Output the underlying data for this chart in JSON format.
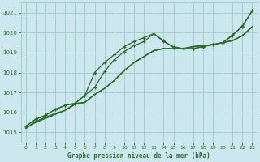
{
  "title": "Graphe pression niveau de la mer (hPa)",
  "xlabel_ticks": [
    0,
    1,
    2,
    3,
    4,
    5,
    6,
    7,
    8,
    9,
    10,
    11,
    12,
    13,
    14,
    15,
    16,
    17,
    18,
    19,
    20,
    21,
    22,
    23
  ],
  "ylim": [
    1014.5,
    1021.5
  ],
  "yticks": [
    1015,
    1016,
    1017,
    1018,
    1019,
    1020,
    1021
  ],
  "background_color": "#cce8ee",
  "grid_color": "#aacccc",
  "line_color": "#2d6a2d",
  "lines": [
    {
      "y": [
        1015.2,
        1015.5,
        1015.7,
        1015.9,
        1016.1,
        1016.4,
        1016.5,
        1016.9,
        1017.2,
        1017.6,
        1018.1,
        1018.5,
        1018.8,
        1019.1,
        1019.2,
        1019.2,
        1019.2,
        1019.3,
        1019.35,
        1019.4,
        1019.5,
        1019.6,
        1019.85,
        1020.3
      ],
      "marker": false
    },
    {
      "y": [
        1015.2,
        1015.5,
        1015.7,
        1015.9,
        1016.1,
        1016.4,
        1016.5,
        1016.9,
        1017.2,
        1017.6,
        1018.1,
        1018.5,
        1018.8,
        1019.1,
        1019.2,
        1019.2,
        1019.2,
        1019.3,
        1019.35,
        1019.4,
        1019.5,
        1019.6,
        1019.85,
        1020.3
      ],
      "marker": false
    },
    {
      "y": [
        1015.2,
        1015.55,
        1015.75,
        1015.95,
        1016.1,
        1016.45,
        1016.5,
        1016.9,
        1017.2,
        1017.6,
        1018.1,
        1018.5,
        1018.8,
        1019.1,
        1019.2,
        1019.2,
        1019.2,
        1019.3,
        1019.35,
        1019.4,
        1019.5,
        1019.6,
        1019.85,
        1020.3
      ],
      "marker": false
    },
    {
      "y": [
        1015.3,
        1015.65,
        1015.85,
        1016.15,
        1016.35,
        1016.45,
        1016.85,
        1017.25,
        1018.05,
        1018.65,
        1019.05,
        1019.35,
        1019.55,
        1019.95,
        1019.6,
        1019.25,
        1019.2,
        1019.2,
        1019.3,
        1019.4,
        1019.5,
        1019.9,
        1020.3,
        1021.1
      ],
      "marker": true
    },
    {
      "y": [
        1015.3,
        1015.65,
        1015.85,
        1016.15,
        1016.35,
        1016.45,
        1016.85,
        1018.0,
        1018.5,
        1018.9,
        1019.3,
        1019.55,
        1019.75,
        1019.95,
        1019.55,
        1019.3,
        1019.2,
        1019.2,
        1019.3,
        1019.4,
        1019.5,
        1019.85,
        1020.35,
        1021.1
      ],
      "marker": true
    }
  ],
  "markersize": 3.5,
  "linewidth": 0.9
}
